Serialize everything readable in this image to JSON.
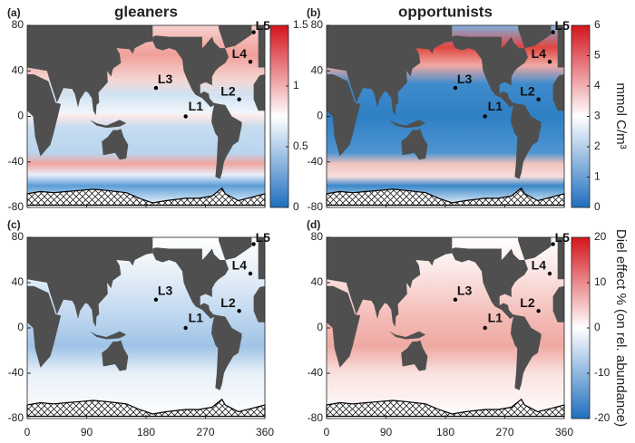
{
  "panels": [
    {
      "tag": "(a)",
      "title": "gleaners",
      "colorbar": {
        "lim": [
          0,
          1.5
        ],
        "ticks": [
          0,
          0.5,
          1,
          1.5
        ]
      }
    },
    {
      "tag": "(b)",
      "title": "opportunists",
      "colorbar": {
        "lim": [
          0,
          6
        ],
        "ticks": [
          0,
          1,
          2,
          3,
          4,
          5,
          6
        ]
      }
    },
    {
      "tag": "(c)"
    },
    {
      "tag": "(d)",
      "colorbar": {
        "lim": [
          -20,
          20
        ],
        "ticks": [
          -20,
          -10,
          0,
          10,
          20
        ]
      }
    }
  ],
  "stations": [
    {
      "label": "L1",
      "lon": 240,
      "lat": 0
    },
    {
      "label": "L2",
      "lon": 321,
      "lat": 15
    },
    {
      "label": "L3",
      "lon": 195,
      "lat": 25
    },
    {
      "label": "L4",
      "lon": 338,
      "lat": 48
    },
    {
      "label": "L5",
      "lon": 343,
      "lat": 74
    }
  ],
  "xlim": [
    0,
    360
  ],
  "xticks": [
    0,
    90,
    180,
    270,
    360
  ],
  "ylim": [
    -80,
    80
  ],
  "yticks": [
    -80,
    -40,
    0,
    40,
    80
  ],
  "side_labels": [
    "mmol C/m³",
    "Diel effect % (on rel. abundance)"
  ]
}
